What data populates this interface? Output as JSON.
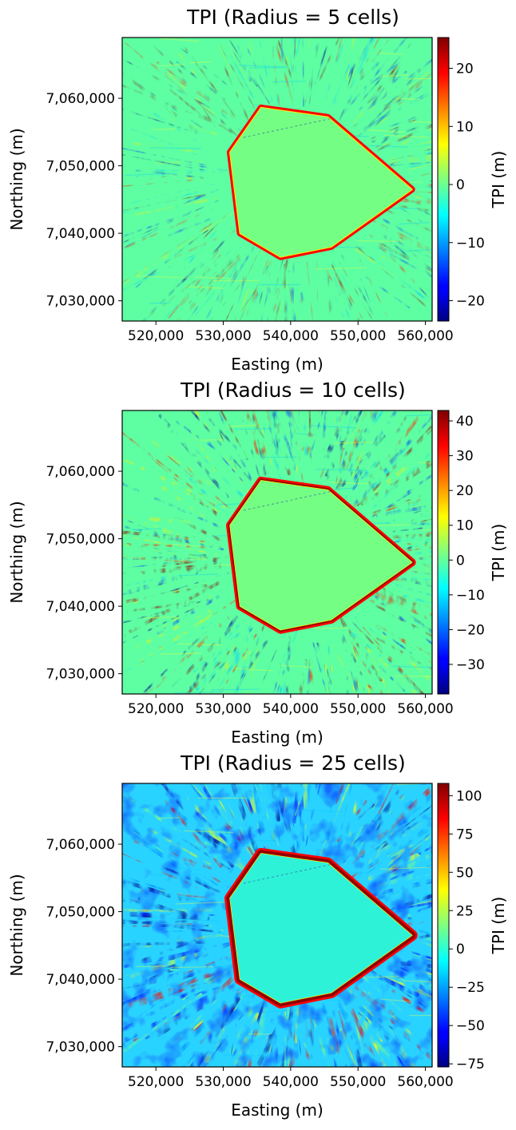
{
  "chart_data": [
    {
      "type": "heatmap",
      "title": "TPI (Radius = 5 cells)",
      "xlabel": "Easting (m)",
      "ylabel": "Northing (m)",
      "colorbar_label": "TPI (m)",
      "colormap": "jet",
      "xlim": [
        515000,
        561000
      ],
      "ylim": [
        7027000,
        7069000
      ],
      "x_ticks": [
        520000,
        530000,
        540000,
        550000,
        560000
      ],
      "x_tick_labels": [
        "520,000",
        "530,000",
        "540,000",
        "550,000",
        "560,000"
      ],
      "y_ticks": [
        7030000,
        7040000,
        7050000,
        7060000
      ],
      "y_tick_labels": [
        "7,030,000",
        "7,040,000",
        "7,050,000",
        "7,060,000"
      ],
      "color_range": [
        -23.5,
        25.3
      ],
      "colorbar_ticks": [
        20,
        10,
        0,
        -10,
        -20
      ],
      "colorbar_tick_labels": [
        "20",
        "10",
        "0",
        "−10",
        "−20"
      ],
      "flat_interior_boundary": [
        [
          535600,
          7058600
        ],
        [
          545500,
          7057200
        ],
        [
          558000,
          7046500
        ],
        [
          546000,
          7038000
        ],
        [
          538500,
          7036500
        ],
        [
          532500,
          7040000
        ],
        [
          531000,
          7052000
        ]
      ]
    },
    {
      "type": "heatmap",
      "title": "TPI (Radius = 10 cells)",
      "xlabel": "Easting (m)",
      "ylabel": "Northing (m)",
      "colorbar_label": "TPI (m)",
      "colormap": "jet",
      "xlim": [
        515000,
        561000
      ],
      "ylim": [
        7027000,
        7069000
      ],
      "x_ticks": [
        520000,
        530000,
        540000,
        550000,
        560000
      ],
      "x_tick_labels": [
        "520,000",
        "530,000",
        "540,000",
        "550,000",
        "560,000"
      ],
      "y_ticks": [
        7030000,
        7040000,
        7050000,
        7060000
      ],
      "y_tick_labels": [
        "7,030,000",
        "7,040,000",
        "7,050,000",
        "7,060,000"
      ],
      "color_range": [
        -38.5,
        43.0
      ],
      "colorbar_ticks": [
        40,
        30,
        20,
        10,
        0,
        -10,
        -20,
        -30
      ],
      "colorbar_tick_labels": [
        "40",
        "30",
        "20",
        "10",
        "0",
        "−10",
        "−20",
        "−30"
      ],
      "flat_interior_boundary": [
        [
          535600,
          7058600
        ],
        [
          545500,
          7057200
        ],
        [
          558000,
          7046500
        ],
        [
          546000,
          7038000
        ],
        [
          538500,
          7036500
        ],
        [
          532500,
          7040000
        ],
        [
          531000,
          7052000
        ]
      ]
    },
    {
      "type": "heatmap",
      "title": "TPI (Radius = 25 cells)",
      "xlabel": "Easting (m)",
      "ylabel": "Northing (m)",
      "colorbar_label": "TPI (m)",
      "colormap": "jet",
      "xlim": [
        515000,
        561000
      ],
      "ylim": [
        7027000,
        7069000
      ],
      "x_ticks": [
        520000,
        530000,
        540000,
        550000,
        560000
      ],
      "x_tick_labels": [
        "520,000",
        "530,000",
        "540,000",
        "550,000",
        "560,000"
      ],
      "y_ticks": [
        7030000,
        7040000,
        7050000,
        7060000
      ],
      "y_tick_labels": [
        "7,030,000",
        "7,040,000",
        "7,050,000",
        "7,060,000"
      ],
      "color_range": [
        -77,
        108
      ],
      "colorbar_ticks": [
        100,
        75,
        50,
        25,
        0,
        -25,
        -50,
        -75
      ],
      "colorbar_tick_labels": [
        "100",
        "75",
        "50",
        "25",
        "0",
        "−25",
        "−50",
        "−75"
      ],
      "flat_interior_boundary": [
        [
          535600,
          7058600
        ],
        [
          545500,
          7057200
        ],
        [
          558000,
          7046500
        ],
        [
          546000,
          7038000
        ],
        [
          538500,
          7036500
        ],
        [
          532500,
          7040000
        ],
        [
          531000,
          7052000
        ]
      ]
    }
  ]
}
